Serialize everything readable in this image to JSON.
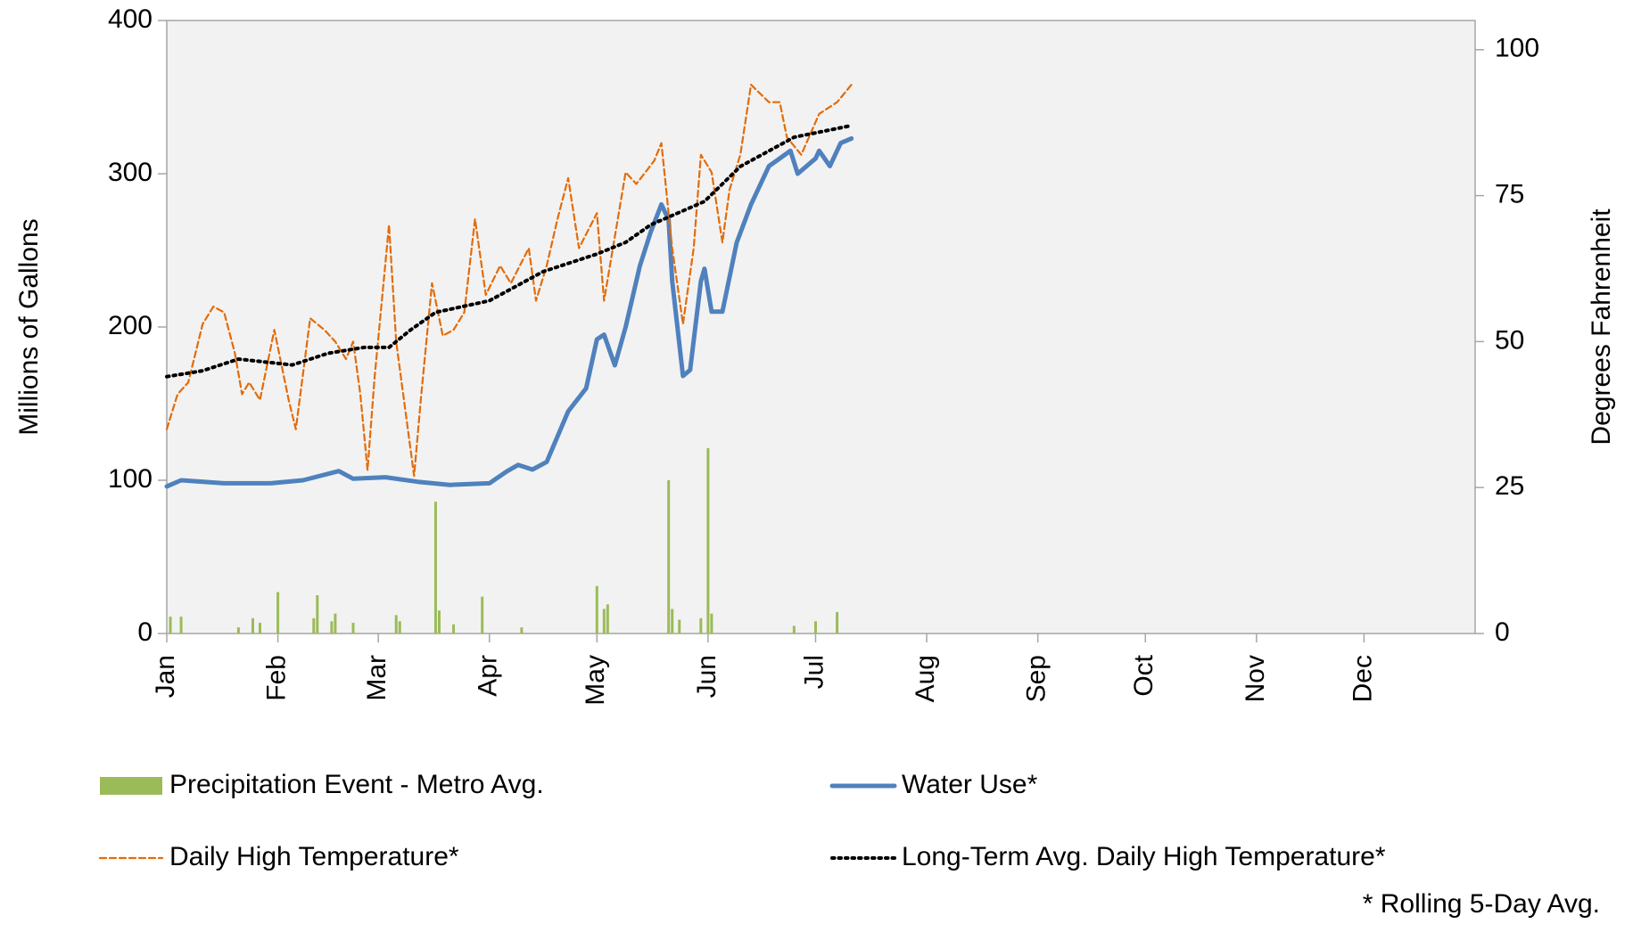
{
  "chart_data": {
    "type": "combo",
    "y_label": "Millions of Gallons",
    "y2_label": "Degrees Fahrenheit",
    "note": "* Rolling 5-Day Avg.",
    "xlim": [
      0,
      365
    ],
    "xticks": [
      {
        "value": 0,
        "label": "Jan"
      },
      {
        "value": 31,
        "label": "Feb"
      },
      {
        "value": 59,
        "label": "Mar"
      },
      {
        "value": 90,
        "label": "Apr"
      },
      {
        "value": 120,
        "label": "May"
      },
      {
        "value": 151,
        "label": "Jun"
      },
      {
        "value": 181,
        "label": "Jul"
      },
      {
        "value": 212,
        "label": "Aug"
      },
      {
        "value": 243,
        "label": "Sep"
      },
      {
        "value": 273,
        "label": "Oct"
      },
      {
        "value": 304,
        "label": "Nov"
      },
      {
        "value": 334,
        "label": "Dec"
      }
    ],
    "ylim": [
      0,
      400
    ],
    "yticks": [
      0,
      100,
      200,
      300,
      400
    ],
    "y2lim": [
      0,
      105
    ],
    "y2ticks": [
      0,
      25,
      50,
      75,
      100
    ],
    "series": [
      {
        "name": "Precipitation Event - Metro Avg.",
        "kind": "bar",
        "color": "#9bbb59",
        "x": [
          1,
          4,
          20,
          24,
          26,
          31,
          41,
          42,
          46,
          47,
          52,
          64,
          65,
          75,
          76,
          80,
          88,
          99,
          120,
          122,
          123,
          140,
          141,
          143,
          149,
          151,
          152,
          175,
          181,
          187
        ],
        "values": [
          11,
          11,
          4,
          10,
          7,
          27,
          10,
          25,
          8,
          13,
          7,
          12,
          8,
          86,
          15,
          6,
          24,
          4,
          31,
          16,
          19,
          100,
          16,
          9,
          10,
          121,
          13,
          5,
          8,
          14
        ]
      },
      {
        "name": "Water Use*",
        "kind": "line",
        "style": "solid",
        "color": "#4f81bd",
        "x": [
          0,
          4,
          16,
          29,
          38,
          48,
          52,
          61,
          70,
          79,
          90,
          95,
          98,
          102,
          106,
          112,
          117,
          120,
          122,
          125,
          128,
          132,
          135,
          138,
          140,
          141,
          144,
          146,
          149,
          150,
          152,
          155,
          159,
          163,
          168,
          171,
          174,
          176,
          181,
          182,
          185,
          188,
          191
        ],
        "values": [
          96,
          100,
          98,
          98,
          100,
          106,
          101,
          102,
          99,
          97,
          98,
          106,
          110,
          107,
          112,
          145,
          160,
          192,
          195,
          175,
          200,
          240,
          262,
          280,
          270,
          230,
          168,
          172,
          230,
          238,
          210,
          210,
          255,
          280,
          305,
          310,
          315,
          300,
          310,
          315,
          305,
          320,
          323
        ]
      },
      {
        "name": "Daily High Temperature*",
        "kind": "line",
        "style": "dashed",
        "axis": "y2",
        "color": "#e36c09",
        "x": [
          0,
          3,
          6,
          10,
          13,
          16,
          19,
          21,
          23,
          26,
          30,
          34,
          36,
          40,
          44,
          47,
          50,
          52,
          54,
          56,
          58,
          62,
          64,
          69,
          71,
          74,
          77,
          80,
          83,
          86,
          89,
          93,
          96,
          101,
          103,
          106,
          109,
          112,
          115,
          120,
          122,
          125,
          128,
          131,
          136,
          138,
          141,
          144,
          147,
          149,
          152,
          155,
          157,
          160,
          163,
          168,
          171,
          173,
          177,
          182,
          187,
          191
        ],
        "values": [
          35,
          41,
          43,
          53,
          56,
          55,
          48,
          41,
          43,
          40,
          52,
          40,
          35,
          54,
          52,
          50,
          47,
          50,
          41,
          28,
          44,
          70,
          50,
          27,
          41,
          60,
          51,
          52,
          55,
          71,
          58,
          63,
          60,
          66,
          57,
          63,
          71,
          78,
          66,
          72,
          57,
          68,
          79,
          77,
          81,
          84,
          66,
          53,
          66,
          82,
          79,
          67,
          76,
          82,
          94,
          91,
          91,
          85,
          82,
          89,
          91,
          94
        ]
      },
      {
        "name": "Long-Term Avg. Daily High Temperature*",
        "kind": "line",
        "style": "dotted",
        "axis": "y2",
        "color": "#000000",
        "x": [
          0,
          10,
          20,
          35,
          45,
          55,
          62,
          68,
          75,
          90,
          105,
          120,
          128,
          135,
          150,
          160,
          175,
          191
        ],
        "values": [
          44,
          45,
          47,
          46,
          48,
          49,
          49,
          52,
          55,
          57,
          62,
          65,
          67,
          70,
          74,
          80,
          85,
          87
        ]
      }
    ]
  }
}
